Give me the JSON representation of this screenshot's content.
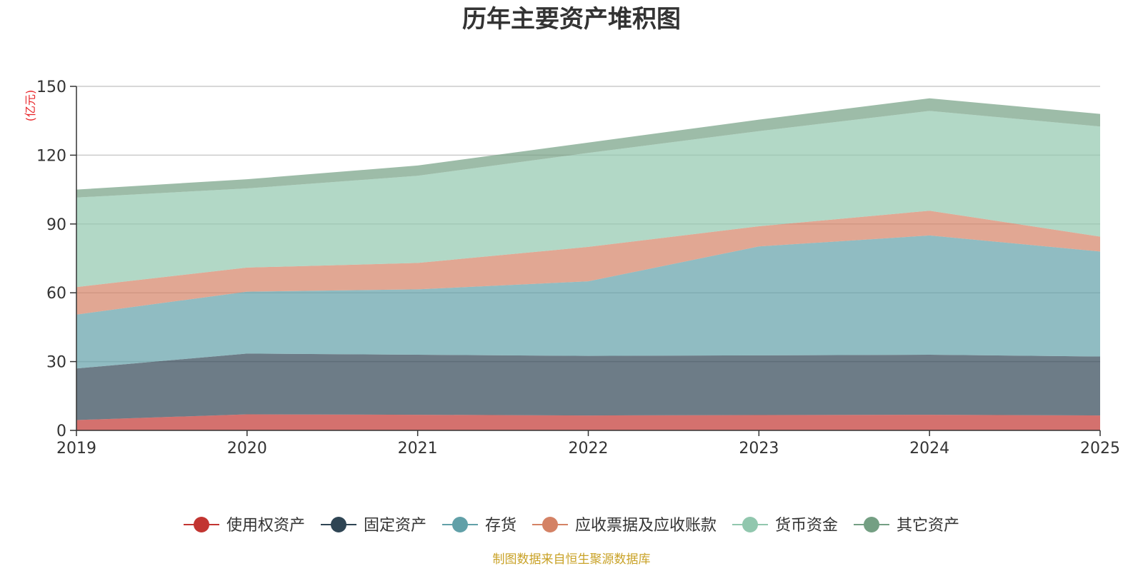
{
  "chart_data": {
    "type": "area",
    "stacked": true,
    "title": "历年主要资产堆积图",
    "ylabel": "(亿元)",
    "xlabel": "",
    "ylim": [
      0,
      150
    ],
    "yticks": [
      0,
      30,
      60,
      90,
      120,
      150
    ],
    "x": [
      "2019",
      "2020",
      "2021",
      "2022",
      "2023",
      "2024",
      "2025"
    ],
    "series": [
      {
        "name": "使用权资产",
        "color": "#c23531",
        "values": [
          4.5,
          7.0,
          6.8,
          6.5,
          6.7,
          6.8,
          6.5
        ]
      },
      {
        "name": "固定资产",
        "color": "#2f4554",
        "values": [
          22.5,
          26.5,
          26.2,
          26.0,
          26.0,
          26.2,
          25.7
        ]
      },
      {
        "name": "存货",
        "color": "#61a0a8",
        "values": [
          23.5,
          27.0,
          28.5,
          32.5,
          47.5,
          52.0,
          45.8
        ]
      },
      {
        "name": "应收票据及应收账款",
        "color": "#d48265",
        "values": [
          12.0,
          10.5,
          11.5,
          15.0,
          8.8,
          10.8,
          6.5
        ]
      },
      {
        "name": "货币资金",
        "color": "#91c7ae",
        "values": [
          39.0,
          34.5,
          38.0,
          41.0,
          41.5,
          43.5,
          48.0
        ]
      },
      {
        "name": "其它资产",
        "color": "#749f83",
        "values": [
          3.5,
          4.0,
          4.5,
          4.5,
          5.0,
          5.5,
          5.5
        ]
      }
    ],
    "legend_position": "bottom",
    "grid": true
  },
  "source_note": "制图数据来自恒生聚源数据库"
}
